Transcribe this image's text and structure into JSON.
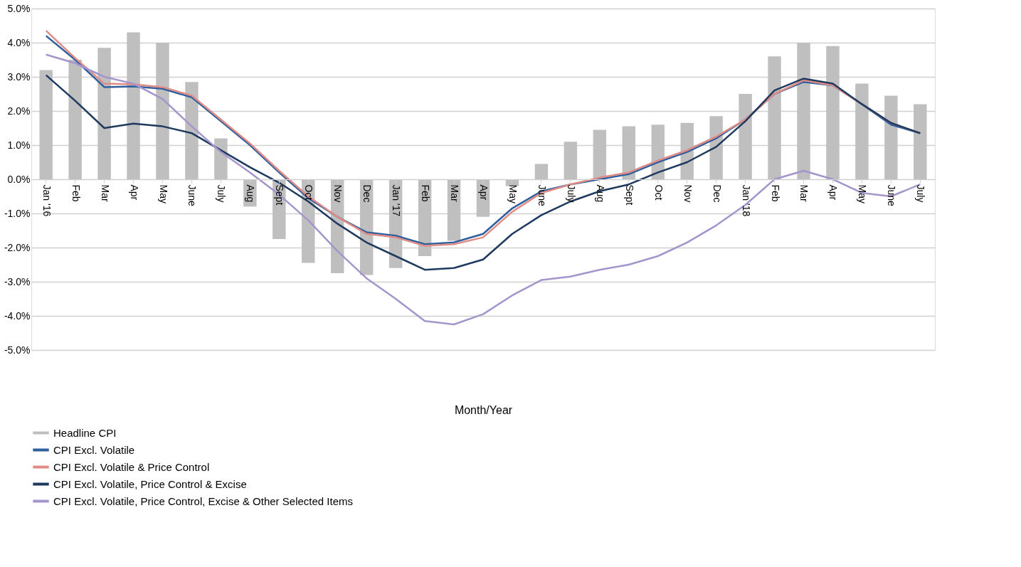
{
  "chart_data": {
    "type": "bar",
    "xlabel": "Month/Year",
    "categories": [
      "Jan '16",
      "Feb",
      "Mar",
      "Apr",
      "May",
      "June",
      "July",
      "Aug",
      "Sept",
      "Oct",
      "Nov",
      "Dec",
      "Jan '17",
      "Feb",
      "Mar",
      "Apr",
      "May",
      "June",
      "July",
      "Aug",
      "Sept",
      "Oct",
      "Nov",
      "Dec",
      "Jan '18",
      "Feb",
      "Mar",
      "Apr",
      "May",
      "June",
      "July"
    ],
    "series": [
      {
        "name": "Headline CPI",
        "type": "bar",
        "color": "#bfbfbf",
        "values": [
          3.2,
          3.5,
          3.85,
          4.3,
          4.0,
          2.85,
          1.2,
          -0.8,
          -1.75,
          -2.45,
          -2.75,
          -2.8,
          -2.6,
          -2.25,
          -1.8,
          -1.1,
          -0.2,
          0.45,
          1.1,
          1.45,
          1.55,
          1.6,
          1.65,
          1.85,
          2.5,
          3.6,
          4.0,
          3.9,
          2.8,
          2.45,
          2.2
        ]
      },
      {
        "name": "CPI Excl. Volatile",
        "type": "line",
        "color": "#2f5f9e",
        "values": [
          4.2,
          3.5,
          2.7,
          2.72,
          2.65,
          2.4,
          1.7,
          1.0,
          0.2,
          -0.55,
          -1.1,
          -1.55,
          -1.65,
          -1.9,
          -1.85,
          -1.6,
          -0.85,
          -0.35,
          -0.15,
          0.0,
          0.15,
          0.5,
          0.8,
          1.2,
          1.75,
          2.5,
          2.85,
          2.75,
          2.2,
          1.6,
          1.35
        ]
      },
      {
        "name": "CPI Excl. Volatile & Price Control",
        "type": "line",
        "color": "#e08c86",
        "values": [
          4.35,
          3.55,
          2.8,
          2.78,
          2.7,
          2.45,
          1.75,
          1.05,
          0.25,
          -0.5,
          -1.1,
          -1.6,
          -1.7,
          -1.95,
          -1.9,
          -1.7,
          -0.95,
          -0.4,
          -0.15,
          0.05,
          0.2,
          0.55,
          0.85,
          1.25,
          1.75,
          2.5,
          2.9,
          2.75,
          2.2,
          1.65,
          1.35
        ]
      },
      {
        "name": "CPI Excl. Volatile, Price Control & Excise",
        "type": "line",
        "color": "#1f3a5f",
        "values": [
          3.05,
          2.3,
          1.5,
          1.63,
          1.55,
          1.35,
          0.85,
          0.35,
          -0.1,
          -0.65,
          -1.3,
          -1.85,
          -2.25,
          -2.65,
          -2.6,
          -2.35,
          -1.6,
          -1.05,
          -0.65,
          -0.35,
          -0.15,
          0.2,
          0.5,
          0.95,
          1.7,
          2.6,
          2.95,
          2.8,
          2.2,
          1.65,
          1.35
        ]
      },
      {
        "name": "CPI Excl. Volatile, Price Control, Excise & Other Selected Items",
        "type": "line",
        "color": "#a495cc",
        "values": [
          3.65,
          3.4,
          3.0,
          2.8,
          2.35,
          1.55,
          0.8,
          0.2,
          -0.45,
          -1.2,
          -2.1,
          -2.9,
          -3.5,
          -4.15,
          -4.25,
          -3.95,
          -3.4,
          -2.95,
          -2.85,
          -2.65,
          -2.5,
          -2.25,
          -1.85,
          -1.35,
          -0.75,
          0.0,
          0.25,
          0.0,
          -0.4,
          -0.5,
          -0.15
        ]
      }
    ],
    "ylim": [
      -5,
      5
    ],
    "yticks": [
      {
        "value": -5,
        "label": "-5.0%"
      },
      {
        "value": -4,
        "label": "-4.0%"
      },
      {
        "value": -3,
        "label": "-3.0%"
      },
      {
        "value": -2,
        "label": "-2.0%"
      },
      {
        "value": -1,
        "label": "-1.0%"
      },
      {
        "value": 0,
        "label": "0.0%"
      },
      {
        "value": 1,
        "label": "1.0%"
      },
      {
        "value": 2,
        "label": "2.0%"
      },
      {
        "value": 3,
        "label": "3.0%"
      },
      {
        "value": 4,
        "label": "4.0%"
      },
      {
        "value": 5,
        "label": "5.0%"
      }
    ],
    "grid": "y",
    "legend": "bottom",
    "line_style": "solid",
    "marker": "none"
  }
}
